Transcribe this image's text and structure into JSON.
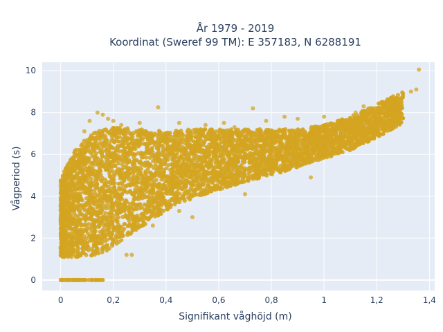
{
  "chart_data": {
    "type": "scatter",
    "title_line1": "År 1979 - 2019",
    "title_line2": "Koordinat (Sweref 99 TM): E 357183, N 6288191",
    "xlabel": "Signifikant våghöjd (m)",
    "ylabel": "Vågperiod (s)",
    "xlim": [
      -0.07,
      1.42
    ],
    "ylim": [
      -0.5,
      10.4
    ],
    "x_ticks": [
      0,
      0.2,
      0.4,
      0.6,
      0.8,
      1,
      1.2,
      1.4
    ],
    "x_tick_labels": [
      "0",
      "0,2",
      "0,4",
      "0,6",
      "0,8",
      "1",
      "1,2",
      "1,4"
    ],
    "y_ticks": [
      0,
      2,
      4,
      6,
      8,
      10
    ],
    "y_tick_labels": [
      "0",
      "2",
      "4",
      "6",
      "8",
      "10"
    ],
    "grid": true,
    "marker_color": "#D4A421",
    "background_color": "#E5ECF6",
    "series": [
      {
        "values": "dense cloud of wave height vs period observations",
        "envelope": {
          "x": [
            0.0,
            0.05,
            0.1,
            0.15,
            0.2,
            0.3,
            0.4,
            0.5,
            0.6,
            0.7,
            0.8,
            0.9,
            1.0,
            1.1,
            1.2,
            1.3
          ],
          "y_upper": [
            4.8,
            6.2,
            6.8,
            7.2,
            7.3,
            7.2,
            7.1,
            7.2,
            7.2,
            7.2,
            7.2,
            7.2,
            7.4,
            7.8,
            8.4,
            9.0
          ],
          "y_lower": [
            1.1,
            1.1,
            1.1,
            1.2,
            1.6,
            2.5,
            3.3,
            3.9,
            4.3,
            4.7,
            5.0,
            5.4,
            5.8,
            6.2,
            6.8,
            7.5
          ]
        },
        "zero_period_points": {
          "x_min": 0.0,
          "x_max": 0.16,
          "y": 0
        },
        "outliers": [
          {
            "x": 0.14,
            "y": 8.0
          },
          {
            "x": 0.16,
            "y": 7.9
          },
          {
            "x": 0.18,
            "y": 7.7
          },
          {
            "x": 0.2,
            "y": 7.6
          },
          {
            "x": 0.23,
            "y": 7.4
          },
          {
            "x": 0.37,
            "y": 8.25
          },
          {
            "x": 0.11,
            "y": 7.6
          },
          {
            "x": 0.09,
            "y": 7.1
          },
          {
            "x": 0.73,
            "y": 8.2
          },
          {
            "x": 0.78,
            "y": 7.6
          },
          {
            "x": 0.85,
            "y": 7.8
          },
          {
            "x": 0.9,
            "y": 7.7
          },
          {
            "x": 1.0,
            "y": 7.8
          },
          {
            "x": 1.12,
            "y": 8.0
          },
          {
            "x": 1.15,
            "y": 8.3
          },
          {
            "x": 1.22,
            "y": 8.5
          },
          {
            "x": 1.24,
            "y": 8.6
          },
          {
            "x": 1.3,
            "y": 8.9
          },
          {
            "x": 1.33,
            "y": 9.0
          },
          {
            "x": 1.36,
            "y": 10.05
          },
          {
            "x": 1.35,
            "y": 9.1
          },
          {
            "x": 0.0,
            "y": 4.5
          },
          {
            "x": 0.0,
            "y": 1.5
          },
          {
            "x": 0.01,
            "y": 4.2
          },
          {
            "x": 0.3,
            "y": 7.5
          },
          {
            "x": 0.45,
            "y": 7.5
          },
          {
            "x": 0.55,
            "y": 7.4
          },
          {
            "x": 0.62,
            "y": 7.5
          },
          {
            "x": 0.66,
            "y": 7.3
          },
          {
            "x": 0.5,
            "y": 3.0
          },
          {
            "x": 0.45,
            "y": 3.3
          },
          {
            "x": 0.7,
            "y": 4.1
          },
          {
            "x": 0.95,
            "y": 4.9
          },
          {
            "x": 0.35,
            "y": 2.6
          },
          {
            "x": 0.27,
            "y": 1.2
          },
          {
            "x": 0.25,
            "y": 1.2
          }
        ]
      }
    ]
  }
}
